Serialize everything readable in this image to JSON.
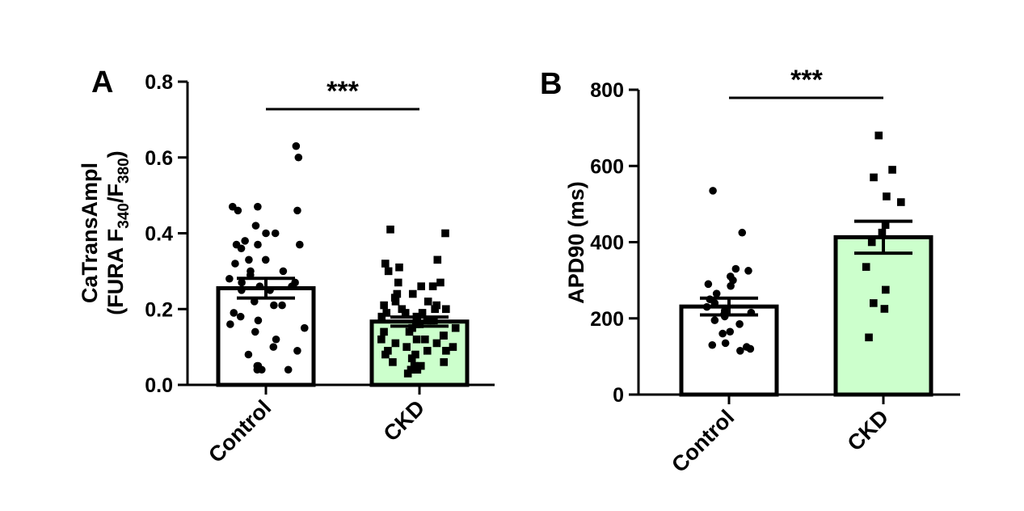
{
  "colors": {
    "control_fill": "#ffffff",
    "ckd_fill": "#ccffcc",
    "stroke": "#000000"
  },
  "chart_data": [
    {
      "panel": "A",
      "type": "bar",
      "categories": [
        "Control",
        "CKD"
      ],
      "ylabel_main": "CaTransAmpl",
      "ylabel_sub": {
        "prefix": "(FURA F",
        "sub1": "340",
        "mid": "/F",
        "sub2": "380",
        "suffix": ")"
      },
      "ylim": [
        0,
        0.8
      ],
      "yticks": [
        0.0,
        0.2,
        0.4,
        0.6,
        0.8
      ],
      "tick_labels": [
        "0.0",
        "0.2",
        "0.4",
        "0.6",
        "0.8"
      ],
      "significance": "***",
      "bars": [
        {
          "category": "Control",
          "mean": 0.255,
          "sem": 0.026,
          "marker": "circle",
          "fill": "#ffffff",
          "points": [
            0.63,
            0.6,
            0.47,
            0.47,
            0.46,
            0.46,
            0.42,
            0.4,
            0.4,
            0.38,
            0.37,
            0.37,
            0.37,
            0.36,
            0.33,
            0.33,
            0.32,
            0.3,
            0.3,
            0.29,
            0.28,
            0.27,
            0.27,
            0.26,
            0.26,
            0.25,
            0.25,
            0.22,
            0.21,
            0.21,
            0.19,
            0.18,
            0.17,
            0.16,
            0.15,
            0.14,
            0.12,
            0.1,
            0.09,
            0.08,
            0.05,
            0.04,
            0.04,
            0.04,
            0.05
          ]
        },
        {
          "category": "CKD",
          "mean": 0.167,
          "sem": 0.012,
          "marker": "square",
          "fill": "#ccffcc",
          "points": [
            0.41,
            0.4,
            0.33,
            0.32,
            0.31,
            0.3,
            0.27,
            0.27,
            0.26,
            0.26,
            0.24,
            0.24,
            0.23,
            0.22,
            0.22,
            0.21,
            0.2,
            0.2,
            0.2,
            0.19,
            0.19,
            0.19,
            0.18,
            0.18,
            0.17,
            0.17,
            0.16,
            0.16,
            0.15,
            0.15,
            0.14,
            0.14,
            0.13,
            0.13,
            0.12,
            0.12,
            0.11,
            0.11,
            0.1,
            0.1,
            0.09,
            0.09,
            0.08,
            0.08,
            0.07,
            0.06,
            0.05,
            0.05,
            0.04,
            0.04,
            0.03,
            0.06,
            0.09,
            0.12,
            0.17,
            0.21
          ]
        }
      ]
    },
    {
      "panel": "B",
      "type": "bar",
      "categories": [
        "Control",
        "CKD"
      ],
      "ylabel": "APD90 (ms)",
      "ylim": [
        0,
        800
      ],
      "yticks": [
        0,
        200,
        400,
        600,
        800
      ],
      "tick_labels": [
        "0",
        "200",
        "400",
        "600",
        "800"
      ],
      "significance": "***",
      "bars": [
        {
          "category": "Control",
          "mean": 231,
          "sem": 22,
          "marker": "circle",
          "fill": "#ffffff",
          "points": [
            535,
            425,
            330,
            325,
            310,
            300,
            290,
            285,
            265,
            250,
            240,
            230,
            220,
            215,
            210,
            205,
            195,
            185,
            165,
            160,
            135,
            130,
            125,
            120,
            115
          ]
        },
        {
          "category": "CKD",
          "mean": 413,
          "sem": 42,
          "marker": "square",
          "fill": "#ccffcc",
          "points": [
            680,
            590,
            570,
            520,
            505,
            445,
            425,
            400,
            335,
            275,
            240,
            225,
            150
          ]
        }
      ]
    }
  ]
}
